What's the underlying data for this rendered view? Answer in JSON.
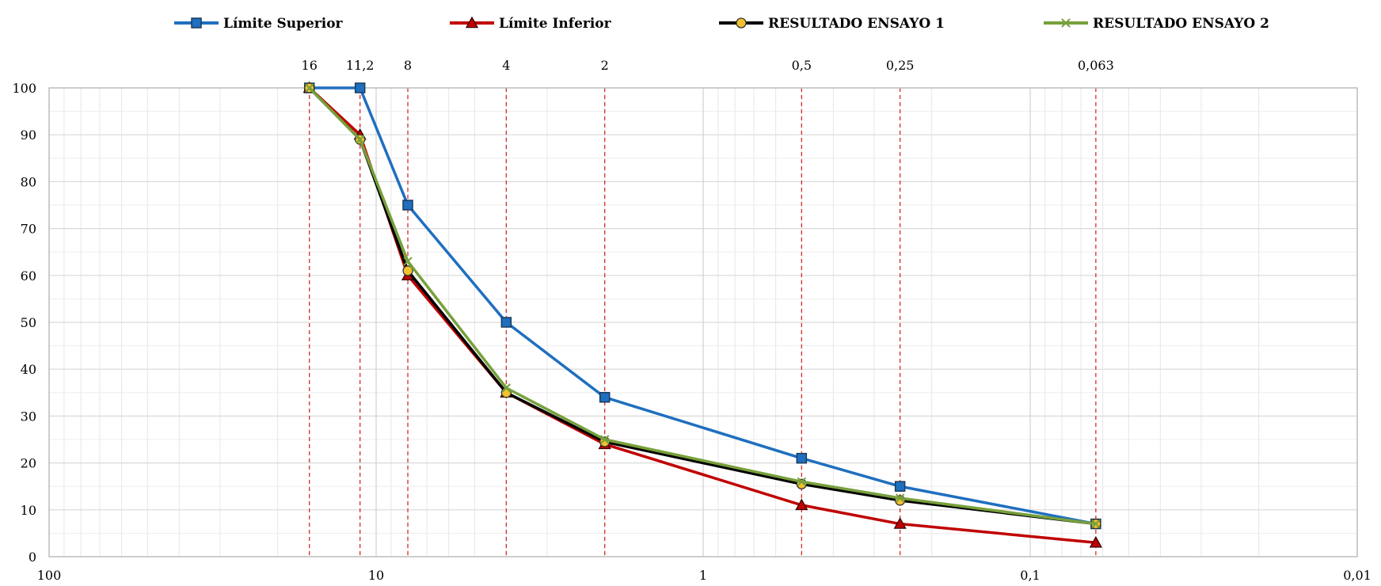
{
  "chart_data": {
    "type": "line",
    "title": "",
    "xlabel": "",
    "ylabel": "",
    "x_scale": "log",
    "x_reversed": true,
    "xlim": [
      100,
      0.01
    ],
    "ylim": [
      0,
      100
    ],
    "y_ticks": [
      0,
      10,
      20,
      30,
      40,
      50,
      60,
      70,
      80,
      90,
      100
    ],
    "x_tick_labels": [
      {
        "value": 100,
        "label": "100"
      },
      {
        "value": 10,
        "label": "10"
      },
      {
        "value": 1,
        "label": "1"
      },
      {
        "value": 0.1,
        "label": "0,1"
      },
      {
        "value": 0.01,
        "label": "0,01"
      }
    ],
    "sieves": [
      {
        "value": 16,
        "label": "16"
      },
      {
        "value": 11.2,
        "label": "11,2"
      },
      {
        "value": 8,
        "label": "8"
      },
      {
        "value": 4,
        "label": "4"
      },
      {
        "value": 2,
        "label": "2"
      },
      {
        "value": 0.5,
        "label": "0,5"
      },
      {
        "value": 0.25,
        "label": "0,25"
      },
      {
        "value": 0.063,
        "label": "0,063"
      }
    ],
    "grid": true,
    "legend_position": "top",
    "series": [
      {
        "name": "Límite Superior",
        "color": "#1F6FBF",
        "marker": "square",
        "x": [
          16,
          11.2,
          8,
          4,
          2,
          0.5,
          0.25,
          0.063
        ],
        "values": [
          100,
          100,
          75,
          50,
          34,
          21,
          15,
          7
        ]
      },
      {
        "name": "Límite Inferior",
        "color": "#C00000",
        "marker": "triangle",
        "x": [
          16,
          11.2,
          8,
          4,
          2,
          0.5,
          0.25,
          0.063
        ],
        "values": [
          100,
          90,
          60,
          35,
          24,
          11,
          7,
          3
        ]
      },
      {
        "name": "RESULTADO ENSAYO 1",
        "color": "#000000",
        "marker": "circle",
        "x": [
          16,
          11.2,
          8,
          4,
          2,
          0.5,
          0.25,
          0.063
        ],
        "values": [
          100,
          89,
          61,
          35,
          24.5,
          15.5,
          12,
          7
        ]
      },
      {
        "name": "RESULTADO ENSAYO 2",
        "color": "#77A03B",
        "marker": "x",
        "x": [
          16,
          11.2,
          8,
          4,
          2,
          0.5,
          0.25,
          0.063
        ],
        "values": [
          100,
          89,
          63,
          36,
          25,
          16,
          12.5,
          7
        ]
      }
    ]
  }
}
